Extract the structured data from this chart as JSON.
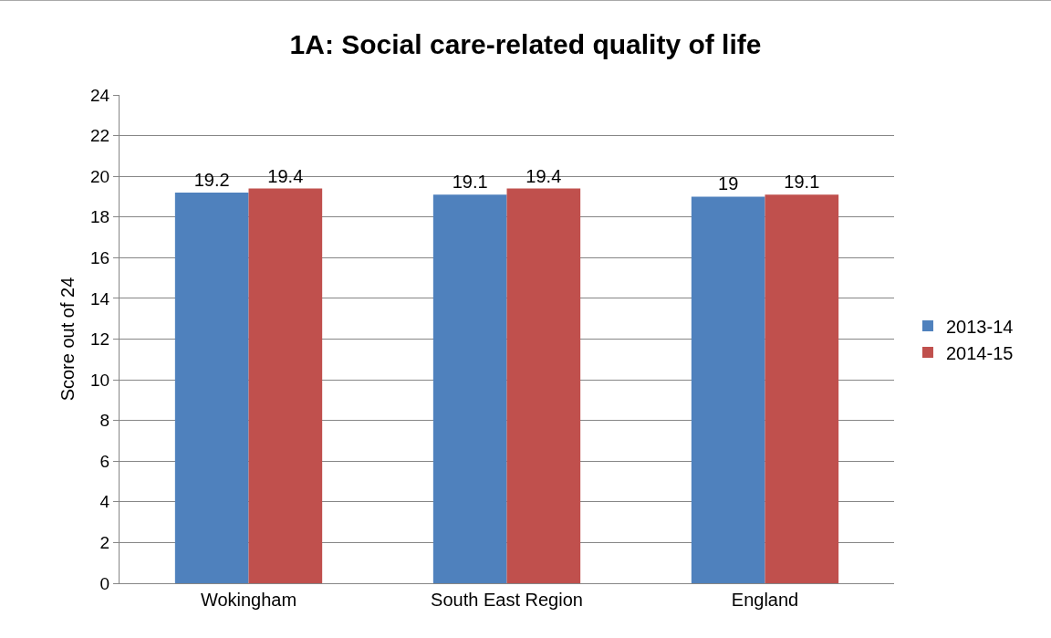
{
  "chart_data": {
    "type": "bar",
    "title": "1A: Social care-related quality of life",
    "ylabel": "Score out of 24",
    "categories": [
      "Wokingham",
      "South East Region",
      "England"
    ],
    "series": [
      {
        "name": "2013-14",
        "color": "#4f81bd",
        "values": [
          19.2,
          19.1,
          19
        ]
      },
      {
        "name": "2014-15",
        "color": "#c0504d",
        "values": [
          19.4,
          19.4,
          19.1
        ]
      }
    ],
    "ylim": [
      0,
      24
    ],
    "yticks": [
      0,
      2,
      4,
      6,
      8,
      10,
      12,
      14,
      16,
      18,
      20,
      22,
      24
    ],
    "grid": "y",
    "legend": "right",
    "data_labels": true
  }
}
